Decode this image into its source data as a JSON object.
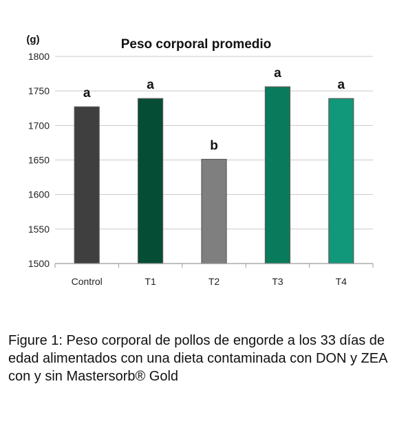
{
  "chart_data": {
    "type": "bar",
    "title": "Peso corporal promedio",
    "unit_label": "(g)",
    "categories": [
      "Control",
      "T1",
      "T2",
      "T3",
      "T4"
    ],
    "values": [
      1727,
      1739,
      1651,
      1756,
      1739
    ],
    "significance_letters": [
      "a",
      "a",
      "b",
      "a",
      "a"
    ],
    "colors": [
      "#3f3f3f",
      "#064d35",
      "#7f7f7f",
      "#0a7a5c",
      "#11987a"
    ],
    "ylim": [
      1500,
      1800
    ],
    "yticks": [
      1500,
      1550,
      1600,
      1650,
      1700,
      1750,
      1800
    ],
    "grid": true,
    "legend": "none"
  },
  "caption": "Figure 1: Peso corporal de pollos de engorde a los 33 días de edad alimentados con una dieta contaminada con DON y ZEA con y sin Mastersorb® Gold"
}
